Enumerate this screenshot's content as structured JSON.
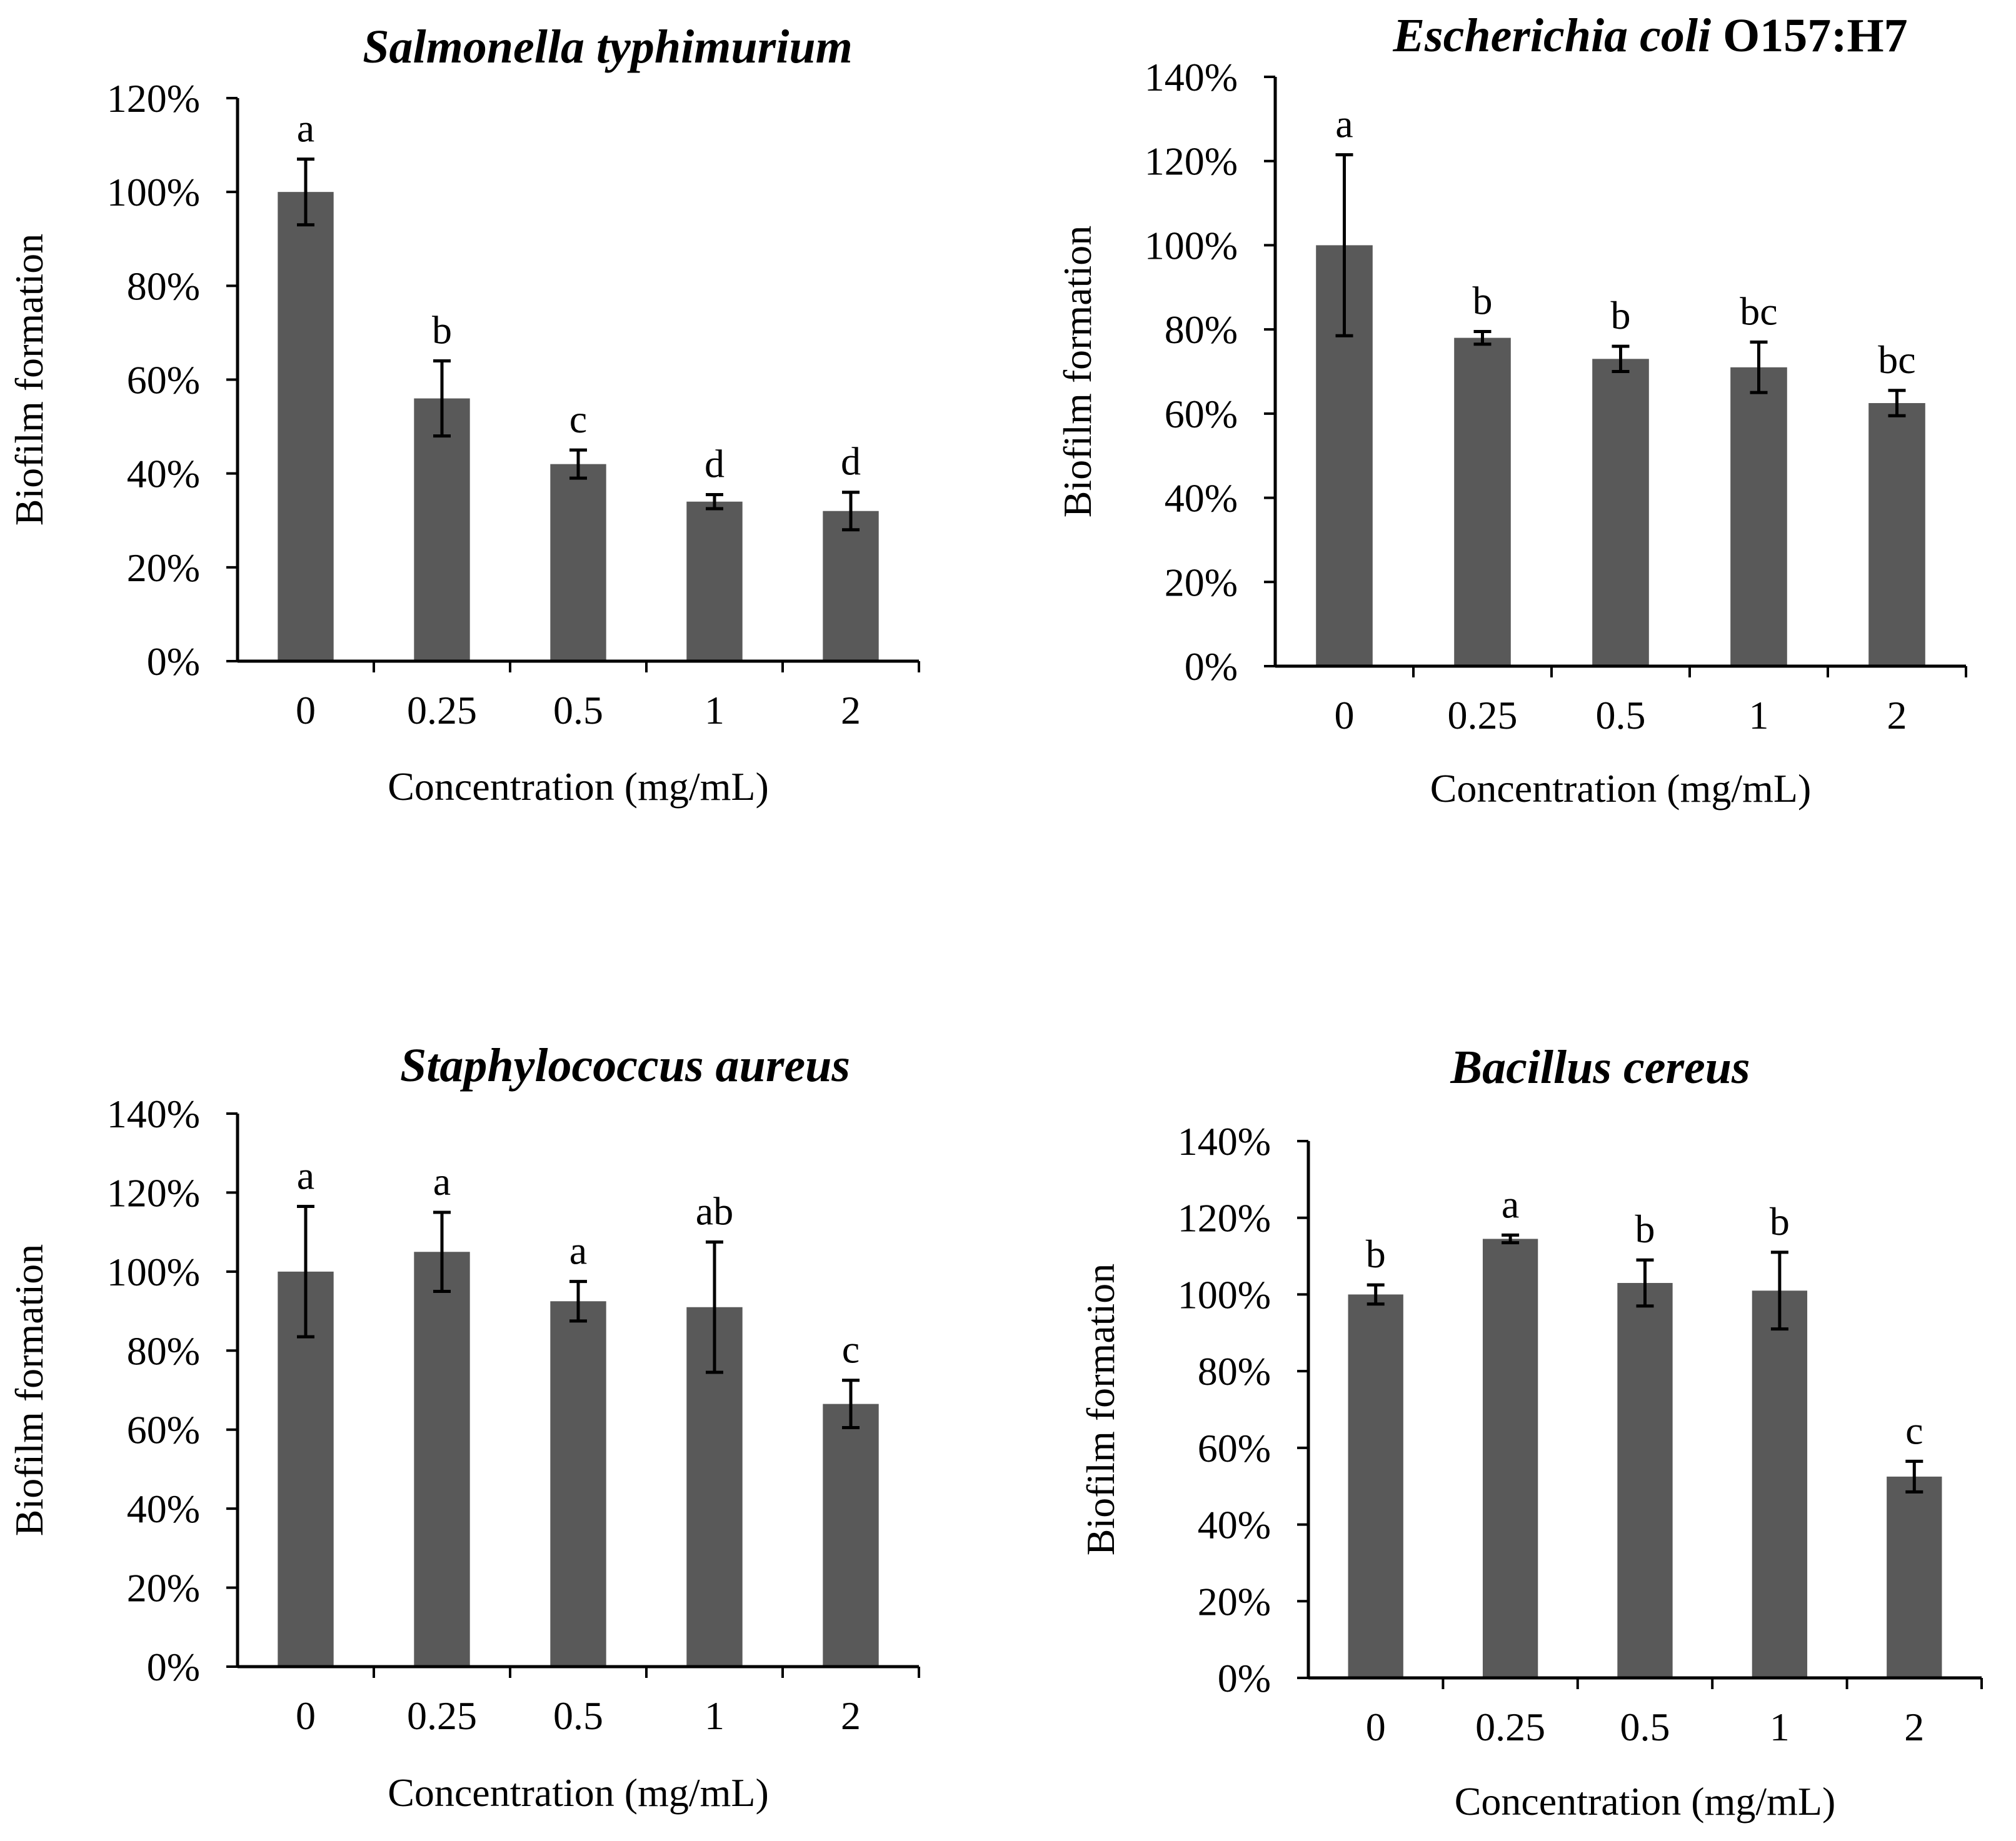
{
  "colors": {
    "bar": "#595959",
    "axis": "#000000",
    "background": "#ffffff"
  },
  "chart_data": [
    {
      "type": "bar",
      "title": "Salmonella typhimurium",
      "title_parts": [
        {
          "text": "Salmonella typhimurium",
          "italic": true
        }
      ],
      "xlabel": "Concentration (mg/mL)",
      "ylabel": "Biofilm formation",
      "categories": [
        "0",
        "0.25",
        "0.5",
        "1",
        "2"
      ],
      "values": [
        100,
        56,
        42,
        34,
        32
      ],
      "errors": [
        7,
        8,
        3,
        1.5,
        4
      ],
      "significance": [
        "a",
        "b",
        "c",
        "d",
        "d"
      ],
      "ylim": [
        0,
        120
      ],
      "yticks": [
        "0%",
        "20%",
        "40%",
        "60%",
        "80%",
        "100%",
        "120%"
      ],
      "grid": false
    },
    {
      "type": "bar",
      "title": "Escherichia coli O157:H7",
      "title_parts": [
        {
          "text": "Escherichia coli",
          "italic": true
        },
        {
          "text": " O157:H7",
          "italic": false
        }
      ],
      "xlabel": "Concentration (mg/mL)",
      "ylabel": "Biofilm formation",
      "categories": [
        "0",
        "0.25",
        "0.5",
        "1",
        "2"
      ],
      "values": [
        100,
        78,
        73,
        71,
        62.5
      ],
      "errors": [
        21.5,
        1.5,
        3,
        6,
        3
      ],
      "significance": [
        "a",
        "b",
        "b",
        "bc",
        "bc"
      ],
      "ylim": [
        0,
        140
      ],
      "yticks": [
        "0%",
        "20%",
        "40%",
        "60%",
        "80%",
        "100%",
        "120%",
        "140%"
      ],
      "grid": false
    },
    {
      "type": "bar",
      "title": "Staphylococcus aureus",
      "title_parts": [
        {
          "text": "Staphylococcus aureus",
          "italic": true
        }
      ],
      "xlabel": "Concentration (mg/mL)",
      "ylabel": "Biofilm formation",
      "categories": [
        "0",
        "0.25",
        "0.5",
        "1",
        "2"
      ],
      "values": [
        100,
        105,
        92.5,
        91,
        66.5
      ],
      "errors": [
        16.5,
        10,
        5,
        16.5,
        6
      ],
      "significance": [
        "a",
        "a",
        "a",
        "ab",
        "c"
      ],
      "ylim": [
        0,
        140
      ],
      "yticks": [
        "0%",
        "20%",
        "40%",
        "60%",
        "80%",
        "100%",
        "120%",
        "140%"
      ],
      "grid": false
    },
    {
      "type": "bar",
      "title": "Bacillus cereus",
      "title_parts": [
        {
          "text": "Bacillus cereus",
          "italic": true
        }
      ],
      "xlabel": "Concentration (mg/mL)",
      "ylabel": "Biofilm formation",
      "categories": [
        "0",
        "0.25",
        "0.5",
        "1",
        "2"
      ],
      "values": [
        100,
        114.5,
        103,
        101,
        52.5
      ],
      "errors": [
        2.5,
        1,
        6,
        10,
        4
      ],
      "significance": [
        "b",
        "a",
        "b",
        "b",
        "c"
      ],
      "ylim": [
        0,
        140
      ],
      "yticks": [
        "0%",
        "20%",
        "40%",
        "60%",
        "80%",
        "100%",
        "120%",
        "140%"
      ],
      "grid": false
    }
  ]
}
